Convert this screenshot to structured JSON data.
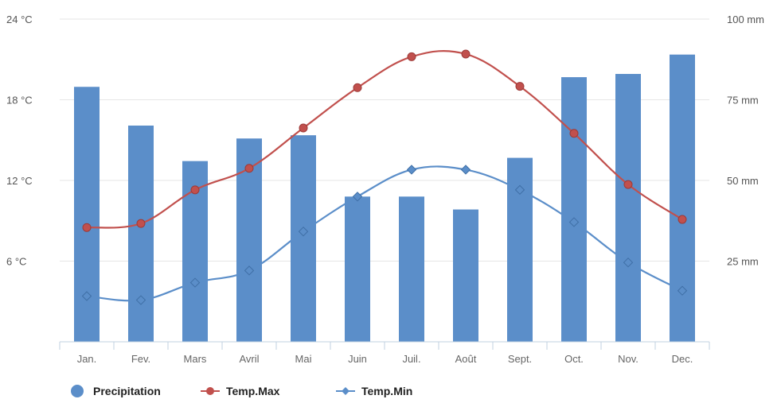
{
  "chart_data": {
    "type": "bar",
    "title": "",
    "categories": [
      "Jan.",
      "Fev.",
      "Mars",
      "Avril",
      "Mai",
      "Juin",
      "Juil.",
      "Août",
      "Sept.",
      "Oct.",
      "Nov.",
      "Dec."
    ],
    "series": [
      {
        "name": "Precipitation",
        "type": "bar",
        "axis": "right",
        "unit": "mm",
        "color": "#5b8ec9",
        "values": [
          79,
          67,
          56,
          63,
          64,
          45,
          45,
          41,
          57,
          82,
          83,
          89
        ]
      },
      {
        "name": "Temp.Max",
        "type": "line",
        "axis": "left",
        "unit": "°C",
        "color": "#c1504d",
        "marker": "circle",
        "values": [
          8.5,
          8.8,
          11.3,
          12.9,
          15.9,
          18.9,
          21.2,
          21.4,
          19.0,
          15.5,
          11.7,
          9.1
        ]
      },
      {
        "name": "Temp.Min",
        "type": "line",
        "axis": "left",
        "unit": "°C",
        "color": "#5b8ec9",
        "marker": "diamond",
        "values": [
          3.4,
          3.1,
          4.4,
          5.3,
          8.2,
          10.8,
          12.8,
          12.8,
          11.3,
          8.9,
          5.9,
          3.8
        ]
      }
    ],
    "y_left": {
      "min": 0,
      "max": 24,
      "ticks": [
        6,
        12,
        18,
        24
      ],
      "tick_labels": [
        "6 °C",
        "12 °C",
        "18 °C",
        "24 °C"
      ]
    },
    "y_right": {
      "min": 0,
      "max": 100,
      "ticks": [
        25,
        50,
        75,
        100
      ],
      "tick_labels": [
        "25 mm",
        "50 mm",
        "75 mm",
        "100 mm"
      ]
    },
    "grid": true,
    "legend": "bottom-left"
  }
}
